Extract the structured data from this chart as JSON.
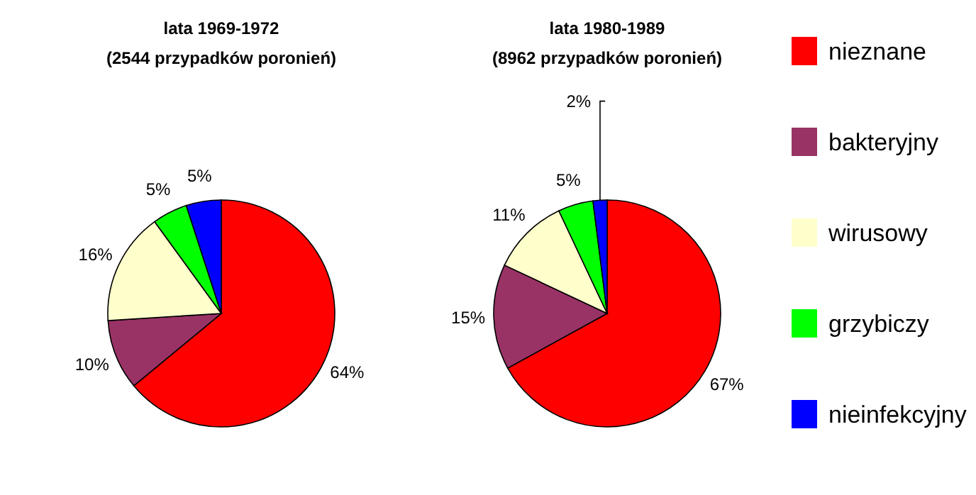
{
  "chart_data": [
    {
      "type": "pie",
      "title": "lata 1969-1972",
      "subtitle": "(2544 przypadków poronień)",
      "categories": [
        "nieznane",
        "bakteryjny",
        "wirusowy",
        "grzybiczy",
        "nieinfekcyjny"
      ],
      "values": [
        64,
        10,
        16,
        5,
        5
      ],
      "value_labels": [
        "64%",
        "10%",
        "16%",
        "5%",
        "5%"
      ],
      "colors": [
        "#ff0000",
        "#993366",
        "#ffffcc",
        "#00ff00",
        "#0000ff"
      ],
      "legend": "right"
    },
    {
      "type": "pie",
      "title": "lata 1980-1989",
      "subtitle": "(8962 przypadków poronień)",
      "categories": [
        null,
        null,
        null,
        null,
        null
      ],
      "values": [
        67,
        15,
        11,
        5,
        2
      ],
      "value_labels": [
        "67%",
        "15%",
        "11%",
        "5%",
        "2%"
      ],
      "colors": [
        "#ff0000",
        "#993366",
        "#ffffcc",
        "#00ff00",
        "#0000ff"
      ]
    }
  ]
}
